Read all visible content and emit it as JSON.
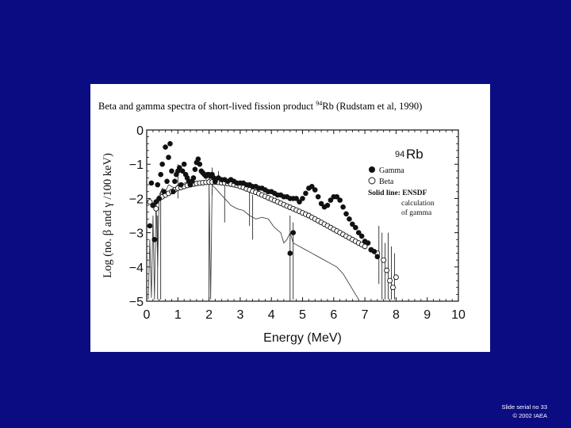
{
  "slide": {
    "footer_line1": "Slide serial no 33",
    "footer_line2": "© 2002 IAEA"
  },
  "colors": {
    "background": "#0c0c82",
    "panel": "#ffffff",
    "ink": "#111111"
  },
  "chart_data": {
    "type": "scatter",
    "title_prefix": "Beta and gamma spectra of short-lived fission product ",
    "title_isotope_mass": "94",
    "title_suffix": "Rb (Rudstam et al, 1990)",
    "xlabel": "Energy (MeV)",
    "ylabel": "Log (no. β and γ /100 keV)",
    "xlim": [
      0,
      10
    ],
    "ylim": [
      -5,
      0
    ],
    "xticks": [
      "0",
      "1",
      "2",
      "3",
      "4",
      "5",
      "6",
      "7",
      "8",
      "9",
      "10"
    ],
    "yticks": [
      "0",
      "−1",
      "−2",
      "−3",
      "−4",
      "−5"
    ],
    "legend_placement": "top-right",
    "legend": {
      "isotope_mass": "94",
      "isotope_symbol": "Rb",
      "gamma": "Gamma",
      "beta": "Beta",
      "solid_line": "Solid line: ENSDF",
      "solid_line_note1": "calculation",
      "solid_line_note2": "of gamma"
    },
    "series": [
      {
        "name": "Gamma",
        "marker": "filled-circle",
        "points": [
          [
            0.1,
            -2.8
          ],
          [
            0.15,
            -1.55
          ],
          [
            0.2,
            -2.2
          ],
          [
            0.25,
            -3.2
          ],
          [
            0.3,
            -2.1
          ],
          [
            0.35,
            -1.6
          ],
          [
            0.4,
            -2.0
          ],
          [
            0.45,
            -1.3
          ],
          [
            0.5,
            -1.0
          ],
          [
            0.55,
            -1.8
          ],
          [
            0.6,
            -0.5
          ],
          [
            0.65,
            -1.5
          ],
          [
            0.7,
            -0.8
          ],
          [
            0.75,
            -0.4
          ],
          [
            0.8,
            -1.2
          ],
          [
            0.85,
            -1.8
          ],
          [
            0.9,
            -1.5
          ],
          [
            0.95,
            -1.3
          ],
          [
            1.0,
            -1.2
          ],
          [
            1.05,
            -1.1
          ],
          [
            1.1,
            -1.6
          ],
          [
            1.15,
            -1.2
          ],
          [
            1.2,
            -1.0
          ],
          [
            1.25,
            -1.3
          ],
          [
            1.3,
            -1.4
          ],
          [
            1.35,
            -1.5
          ],
          [
            1.4,
            -1.6
          ],
          [
            1.45,
            -1.5
          ],
          [
            1.5,
            -1.4
          ],
          [
            1.55,
            -1.15
          ],
          [
            1.6,
            -0.95
          ],
          [
            1.65,
            -0.85
          ],
          [
            1.7,
            -1.0
          ],
          [
            1.75,
            -1.2
          ],
          [
            1.8,
            -1.25
          ],
          [
            1.85,
            -1.3
          ],
          [
            1.9,
            -1.35
          ],
          [
            1.95,
            -1.3
          ],
          [
            2.0,
            -1.3
          ],
          [
            2.05,
            -1.35
          ],
          [
            2.1,
            -1.3
          ],
          [
            2.15,
            -1.4
          ],
          [
            2.2,
            -1.5
          ],
          [
            2.3,
            -1.4
          ],
          [
            2.4,
            -1.45
          ],
          [
            2.5,
            -1.45
          ],
          [
            2.6,
            -1.5
          ],
          [
            2.7,
            -1.45
          ],
          [
            2.8,
            -1.5
          ],
          [
            2.9,
            -1.55
          ],
          [
            3.0,
            -1.55
          ],
          [
            3.1,
            -1.55
          ],
          [
            3.2,
            -1.6
          ],
          [
            3.3,
            -1.6
          ],
          [
            3.4,
            -1.65
          ],
          [
            3.5,
            -1.65
          ],
          [
            3.6,
            -1.7
          ],
          [
            3.7,
            -1.7
          ],
          [
            3.8,
            -1.75
          ],
          [
            3.9,
            -1.8
          ],
          [
            4.0,
            -1.8
          ],
          [
            4.1,
            -1.85
          ],
          [
            4.2,
            -1.9
          ],
          [
            4.3,
            -1.9
          ],
          [
            4.4,
            -1.95
          ],
          [
            4.5,
            -1.95
          ],
          [
            4.6,
            -2.0
          ],
          [
            4.7,
            -2.0
          ],
          [
            4.8,
            -2.0
          ],
          [
            4.9,
            -2.1
          ],
          [
            5.0,
            -2.0
          ],
          [
            5.1,
            -1.85
          ],
          [
            5.2,
            -1.7
          ],
          [
            5.3,
            -1.65
          ],
          [
            5.4,
            -1.75
          ],
          [
            5.5,
            -1.95
          ],
          [
            5.6,
            -2.15
          ],
          [
            5.7,
            -2.25
          ],
          [
            5.8,
            -2.2
          ],
          [
            5.9,
            -2.05
          ],
          [
            6.0,
            -1.95
          ],
          [
            6.1,
            -1.95
          ],
          [
            6.2,
            -2.05
          ],
          [
            6.3,
            -2.25
          ],
          [
            6.4,
            -2.45
          ],
          [
            6.5,
            -2.6
          ],
          [
            6.6,
            -2.75
          ],
          [
            6.7,
            -2.85
          ],
          [
            6.8,
            -3.0
          ],
          [
            6.9,
            -3.1
          ],
          [
            7.0,
            -3.25
          ],
          [
            7.1,
            -3.3
          ],
          [
            7.2,
            -3.5
          ],
          [
            7.3,
            -3.55
          ],
          [
            7.4,
            -3.7
          ],
          [
            4.6,
            -3.6
          ],
          [
            4.7,
            -3.0
          ]
        ]
      },
      {
        "name": "Beta",
        "marker": "open-circle",
        "points": [
          [
            0.1,
            -2.1
          ],
          [
            0.2,
            -2.2
          ],
          [
            0.3,
            -2.3
          ],
          [
            0.4,
            -2.0
          ],
          [
            0.5,
            -1.95
          ],
          [
            0.6,
            -1.9
          ],
          [
            0.7,
            -1.85
          ],
          [
            0.8,
            -1.8
          ],
          [
            0.9,
            -1.75
          ],
          [
            1.0,
            -1.7
          ],
          [
            1.1,
            -1.68
          ],
          [
            1.2,
            -1.65
          ],
          [
            1.3,
            -1.62
          ],
          [
            1.4,
            -1.6
          ],
          [
            1.5,
            -1.58
          ],
          [
            1.6,
            -1.56
          ],
          [
            1.7,
            -1.55
          ],
          [
            1.8,
            -1.54
          ],
          [
            1.9,
            -1.53
          ],
          [
            2.0,
            -1.52
          ],
          [
            2.1,
            -1.52
          ],
          [
            2.2,
            -1.52
          ],
          [
            2.3,
            -1.53
          ],
          [
            2.4,
            -1.54
          ],
          [
            2.5,
            -1.55
          ],
          [
            2.6,
            -1.56
          ],
          [
            2.7,
            -1.58
          ],
          [
            2.8,
            -1.6
          ],
          [
            2.9,
            -1.62
          ],
          [
            3.0,
            -1.65
          ],
          [
            3.1,
            -1.68
          ],
          [
            3.2,
            -1.72
          ],
          [
            3.3,
            -1.75
          ],
          [
            3.4,
            -1.79
          ],
          [
            3.5,
            -1.82
          ],
          [
            3.6,
            -1.86
          ],
          [
            3.7,
            -1.9
          ],
          [
            3.8,
            -1.94
          ],
          [
            3.9,
            -1.98
          ],
          [
            4.0,
            -2.02
          ],
          [
            4.1,
            -2.06
          ],
          [
            4.2,
            -2.1
          ],
          [
            4.3,
            -2.14
          ],
          [
            4.4,
            -2.18
          ],
          [
            4.5,
            -2.22
          ],
          [
            4.6,
            -2.26
          ],
          [
            4.7,
            -2.3
          ],
          [
            4.8,
            -2.34
          ],
          [
            4.9,
            -2.38
          ],
          [
            5.0,
            -2.42
          ],
          [
            5.1,
            -2.46
          ],
          [
            5.2,
            -2.5
          ],
          [
            5.3,
            -2.55
          ],
          [
            5.4,
            -2.6
          ],
          [
            5.5,
            -2.65
          ],
          [
            5.6,
            -2.7
          ],
          [
            5.7,
            -2.75
          ],
          [
            5.8,
            -2.8
          ],
          [
            5.9,
            -2.85
          ],
          [
            6.0,
            -2.9
          ],
          [
            6.1,
            -2.95
          ],
          [
            6.2,
            -3.0
          ],
          [
            6.3,
            -3.05
          ],
          [
            6.4,
            -3.1
          ],
          [
            6.5,
            -3.15
          ],
          [
            6.6,
            -3.2
          ],
          [
            6.7,
            -3.25
          ],
          [
            6.8,
            -3.3
          ],
          [
            6.9,
            -3.35
          ],
          [
            7.0,
            -3.4
          ],
          [
            7.2,
            -3.5
          ],
          [
            7.4,
            -3.6
          ],
          [
            7.6,
            -3.8
          ],
          [
            7.7,
            -4.1
          ],
          [
            7.8,
            -4.4
          ],
          [
            7.9,
            -4.6
          ],
          [
            8.0,
            -4.3
          ]
        ]
      },
      {
        "name": "Solid line: ENSDF",
        "marker": "line",
        "points": [
          [
            0.05,
            -4.95
          ],
          [
            0.1,
            -3.2
          ],
          [
            0.15,
            -4.9
          ],
          [
            0.2,
            -2.5
          ],
          [
            0.25,
            -4.95
          ],
          [
            0.3,
            -2.0
          ],
          [
            0.35,
            -4.0
          ],
          [
            0.4,
            -1.9
          ],
          [
            0.5,
            -1.7
          ],
          [
            0.6,
            -1.8
          ],
          [
            0.7,
            -1.6
          ],
          [
            0.8,
            -1.65
          ],
          [
            0.9,
            -1.7
          ],
          [
            1.0,
            -1.6
          ],
          [
            1.2,
            -1.55
          ],
          [
            1.4,
            -1.5
          ],
          [
            1.6,
            -1.5
          ],
          [
            1.8,
            -1.55
          ],
          [
            2.0,
            -1.5
          ],
          [
            2.05,
            -4.95
          ],
          [
            2.1,
            -1.6
          ],
          [
            2.2,
            -1.7
          ],
          [
            2.3,
            -1.8
          ],
          [
            2.5,
            -2.0
          ],
          [
            2.7,
            -2.2
          ],
          [
            2.9,
            -2.3
          ],
          [
            3.1,
            -2.35
          ],
          [
            3.3,
            -2.5
          ],
          [
            3.5,
            -2.6
          ],
          [
            3.7,
            -2.55
          ],
          [
            3.9,
            -2.6
          ],
          [
            4.1,
            -2.85
          ],
          [
            4.3,
            -3.0
          ],
          [
            4.4,
            -3.3
          ],
          [
            4.5,
            -3.2
          ],
          [
            4.6,
            -3.0
          ],
          [
            4.7,
            -3.3
          ],
          [
            4.9,
            -3.4
          ],
          [
            5.1,
            -3.5
          ],
          [
            5.3,
            -3.6
          ],
          [
            5.5,
            -3.7
          ],
          [
            5.7,
            -3.8
          ],
          [
            5.9,
            -3.9
          ],
          [
            6.1,
            -4.0
          ],
          [
            6.3,
            -4.2
          ],
          [
            6.5,
            -4.5
          ],
          [
            6.7,
            -4.8
          ],
          [
            6.8,
            -4.95
          ]
        ]
      }
    ],
    "error_bars": [
      [
        0.35,
        -4.95,
        -2.5
      ],
      [
        0.45,
        -4.95,
        -1.8
      ],
      [
        1.0,
        -2.0,
        -1.0
      ],
      [
        2.0,
        -4.95,
        -1.4
      ],
      [
        2.1,
        -1.9,
        -1.1
      ],
      [
        2.3,
        -1.6,
        -1.2
      ],
      [
        2.5,
        -2.7,
        -1.6
      ],
      [
        3.3,
        -2.8,
        -1.7
      ],
      [
        3.4,
        -3.2,
        -1.9
      ],
      [
        4.6,
        -4.95,
        -2.5
      ],
      [
        4.7,
        -4.95,
        -2.7
      ],
      [
        7.45,
        -4.5,
        -2.8
      ],
      [
        7.55,
        -4.95,
        -3.0
      ],
      [
        7.65,
        -4.95,
        -3.3
      ],
      [
        7.75,
        -4.95,
        -3.0
      ],
      [
        7.85,
        -4.95,
        -3.4
      ],
      [
        7.95,
        -4.95,
        -3.6
      ]
    ]
  }
}
